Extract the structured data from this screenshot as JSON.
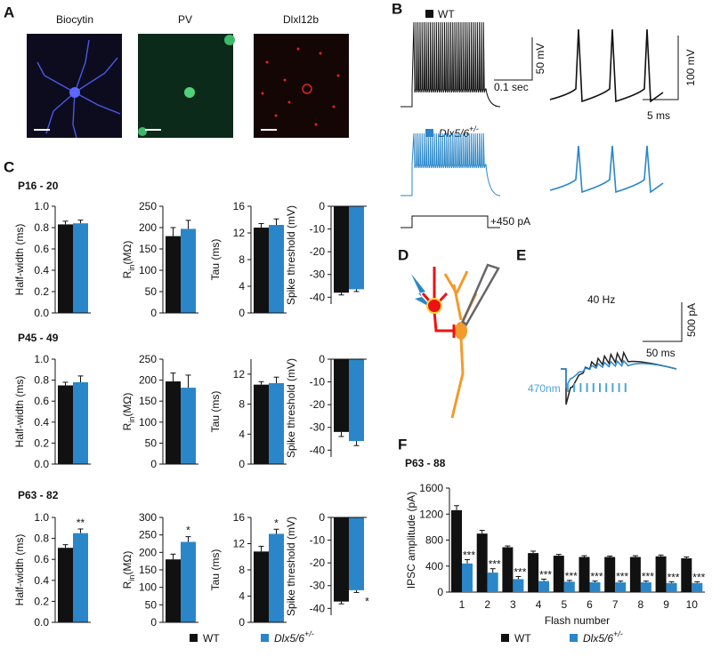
{
  "panel_a": {
    "label": "A",
    "images": [
      "Biocytin",
      "PV",
      "Dlxl12b"
    ]
  },
  "panel_b": {
    "label": "B",
    "wt_legend": "WT",
    "mut_legend": [
      "Dlx5/6",
      "+/-"
    ],
    "scale_left": [
      "50 mV",
      "0.1 sec"
    ],
    "scale_right": [
      "100 mV",
      "5 ms"
    ],
    "stimulus": "+450 pA"
  },
  "panel_c": {
    "label": "C",
    "rows": [
      "P16 - 20",
      "P45 - 49",
      "P63 - 82"
    ],
    "legend": [
      {
        "name": "WT",
        "color": "#111111"
      },
      {
        "name": [
          "Dlx5/6",
          "+/-"
        ],
        "color": "#2a86c8"
      }
    ]
  },
  "panel_d": {
    "label": "D"
  },
  "panel_e": {
    "label": "E",
    "frequency": "40 Hz",
    "scale": [
      "500 pA",
      "50 ms"
    ],
    "light": "470nm"
  },
  "panel_f": {
    "label": "F"
  },
  "chart_data": [
    {
      "type": "bar",
      "ylabel": "Half-width (ms)",
      "values": [
        0.83,
        0.84
      ],
      "errors": [
        0.03,
        0.03
      ],
      "colors": [
        "#111111",
        "#2a86c8"
      ],
      "ylim": [
        0,
        1
      ],
      "yticks": [
        {
          "value": 0,
          "label": "0.0"
        },
        0.2,
        0.4,
        0.6,
        0.8,
        {
          "value": 1,
          "label": "1.0"
        }
      ]
    },
    {
      "type": "bar",
      "ylabel": [
        "R",
        "in",
        "(MΩ)"
      ],
      "values": [
        180,
        197
      ],
      "errors": [
        20,
        20
      ],
      "colors": [
        "#111111",
        "#2a86c8"
      ],
      "ylim": [
        0,
        250
      ],
      "yticks": [
        0,
        50,
        100,
        150,
        200,
        250
      ]
    },
    {
      "type": "bar",
      "ylabel": "Tau (ms)",
      "values": [
        12.8,
        13.2
      ],
      "errors": [
        0.6,
        0.9
      ],
      "colors": [
        "#111111",
        "#2a86c8"
      ],
      "ylim": [
        0,
        16
      ],
      "yticks": [
        0,
        4,
        8,
        12,
        16
      ]
    },
    {
      "type": "bar",
      "ylabel": "Spike threshold (mV)",
      "values": [
        -38,
        -36.5
      ],
      "errors": [
        1,
        1
      ],
      "colors": [
        "#111111",
        "#2a86c8"
      ],
      "ylim": [
        -43,
        0
      ],
      "yticks": [
        0,
        -10,
        -20,
        -30,
        -40
      ]
    },
    {
      "type": "bar",
      "ylabel": "Half-width (ms)",
      "values": [
        0.75,
        0.78
      ],
      "errors": [
        0.03,
        0.06
      ],
      "colors": [
        "#111111",
        "#2a86c8"
      ],
      "ylim": [
        0,
        1
      ],
      "yticks": [
        {
          "value": 0,
          "label": "0.0"
        },
        0.2,
        0.4,
        0.6,
        0.8,
        {
          "value": 1,
          "label": "1.0"
        }
      ]
    },
    {
      "type": "bar",
      "ylabel": [
        "R",
        "in",
        "(MΩ)"
      ],
      "values": [
        197,
        182
      ],
      "errors": [
        20,
        30
      ],
      "colors": [
        "#111111",
        "#2a86c8"
      ],
      "ylim": [
        0,
        250
      ],
      "yticks": [
        0,
        50,
        100,
        150,
        200,
        250
      ]
    },
    {
      "type": "bar",
      "ylabel": "Tau (ms)",
      "values": [
        10.6,
        10.8
      ],
      "errors": [
        0.4,
        0.8
      ],
      "colors": [
        "#111111",
        "#2a86c8"
      ],
      "ylim": [
        0,
        14
      ],
      "yticks": [
        0,
        4,
        8,
        12
      ]
    },
    {
      "type": "bar",
      "ylabel": "Spike threshold (mV)",
      "values": [
        -32,
        -36
      ],
      "errors": [
        2,
        2
      ],
      "colors": [
        "#111111",
        "#2a86c8"
      ],
      "ylim": [
        -43,
        0
      ],
      "yticks": [
        0,
        -10,
        -20,
        -30,
        -40
      ]
    },
    {
      "type": "bar",
      "ylabel": "Half-width (ms)",
      "values": [
        0.71,
        0.85
      ],
      "errors": [
        0.03,
        0.04
      ],
      "stars": [
        null,
        "**"
      ],
      "colors": [
        "#111111",
        "#2a86c8"
      ],
      "ylim": [
        0,
        1
      ],
      "yticks": [
        {
          "value": 0,
          "label": "0.0"
        },
        0.2,
        0.4,
        0.6,
        0.8,
        {
          "value": 1,
          "label": "1.0"
        }
      ]
    },
    {
      "type": "bar",
      "ylabel": [
        "R",
        "in",
        "(MΩ)"
      ],
      "values": [
        180,
        230
      ],
      "errors": [
        15,
        15
      ],
      "stars": [
        null,
        "*"
      ],
      "colors": [
        "#111111",
        "#2a86c8"
      ],
      "ylim": [
        0,
        300
      ],
      "yticks": [
        0,
        50,
        100,
        150,
        200,
        250,
        300
      ]
    },
    {
      "type": "bar",
      "ylabel": "Tau (ms)",
      "values": [
        10.8,
        13.5
      ],
      "errors": [
        0.8,
        0.7
      ],
      "stars": [
        null,
        "*"
      ],
      "colors": [
        "#111111",
        "#2a86c8"
      ],
      "ylim": [
        0,
        16
      ],
      "yticks": [
        0,
        4,
        8,
        12,
        16
      ]
    },
    {
      "type": "bar",
      "ylabel": "Spike threshold (mV)",
      "values": [
        -37,
        -32
      ],
      "errors": [
        1,
        1
      ],
      "stars": [
        null,
        "*"
      ],
      "colors": [
        "#111111",
        "#2a86c8"
      ],
      "ylim": [
        -43,
        0
      ],
      "yticks": [
        0,
        -10,
        -20,
        -30,
        -40
      ]
    },
    {
      "type": "grouped-bar",
      "title": "P63 - 88",
      "xlabel": "Flash number",
      "ylabel": "IPSC amplitude (pA)",
      "categories": [
        "1",
        "2",
        "3",
        "4",
        "5",
        "6",
        "7",
        "8",
        "9",
        "10"
      ],
      "series": [
        {
          "name": "WT",
          "color": "#111111",
          "values": [
            1260,
            900,
            690,
            600,
            560,
            540,
            540,
            540,
            550,
            520
          ],
          "errors": [
            70,
            50,
            20,
            30,
            20,
            20,
            15,
            20,
            20,
            20
          ]
        },
        {
          "name": [
            "Dlx5/6",
            "+/-"
          ],
          "color": "#2a86c8",
          "values": [
            440,
            300,
            200,
            170,
            160,
            150,
            150,
            150,
            140,
            140
          ],
          "errors": [
            60,
            60,
            40,
            30,
            20,
            20,
            20,
            20,
            20,
            20
          ],
          "stars": [
            "***",
            "***",
            "***",
            "***",
            "***",
            "***",
            "***",
            "***",
            "***",
            "***"
          ]
        }
      ],
      "ylim": [
        0,
        1600
      ],
      "yticks": [
        0,
        400,
        800,
        1200,
        1600
      ]
    }
  ]
}
